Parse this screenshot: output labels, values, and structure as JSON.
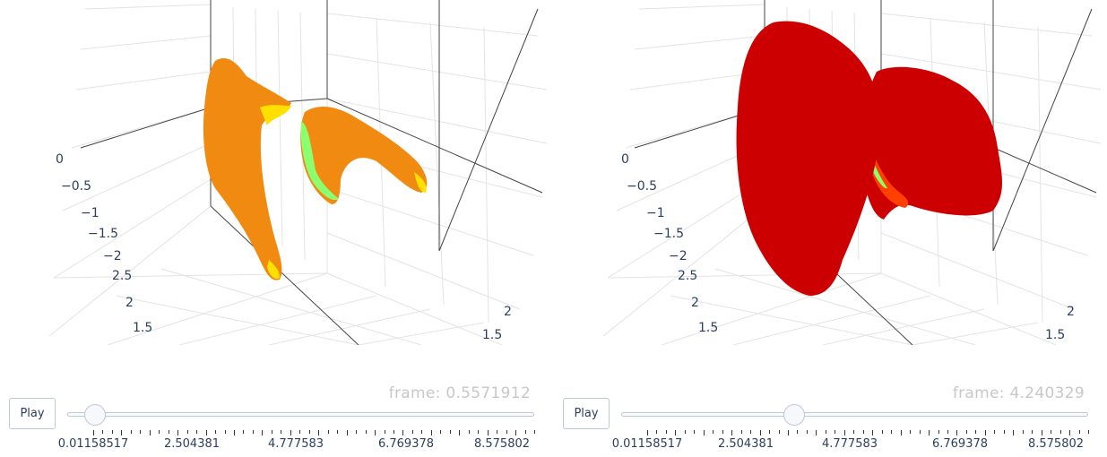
{
  "panels": [
    {
      "frame_prefix": "frame: ",
      "frame_value": "0.5571912",
      "play_label": "Play",
      "slider_level": 0.06,
      "slider_ticks": [
        "0.01158517",
        "2.504381",
        "4.777583",
        "6.769378",
        "8.575802"
      ],
      "axis_labels": [
        "0",
        "−0.5",
        "−1",
        "−1.5",
        "−2",
        "2.5",
        "2",
        "1.5",
        "2",
        "1.5"
      ],
      "colors": {
        "body": "#f08a10",
        "highlight": "#ffe000",
        "green": "#8aff70"
      }
    },
    {
      "frame_prefix": "frame: ",
      "frame_value": "4.240329",
      "play_label": "Play",
      "slider_level": 0.37,
      "slider_ticks": [
        "0.01158517",
        "2.504381",
        "4.777583",
        "6.769378",
        "8.575802"
      ],
      "axis_labels": [
        "0",
        "−0.5",
        "−1",
        "−1.5",
        "−2",
        "2.5",
        "2",
        "1.5",
        "2",
        "1.5"
      ],
      "colors": {
        "body": "#cc0000",
        "highlight": "#ff4000",
        "green": "#8aff70"
      }
    }
  ]
}
